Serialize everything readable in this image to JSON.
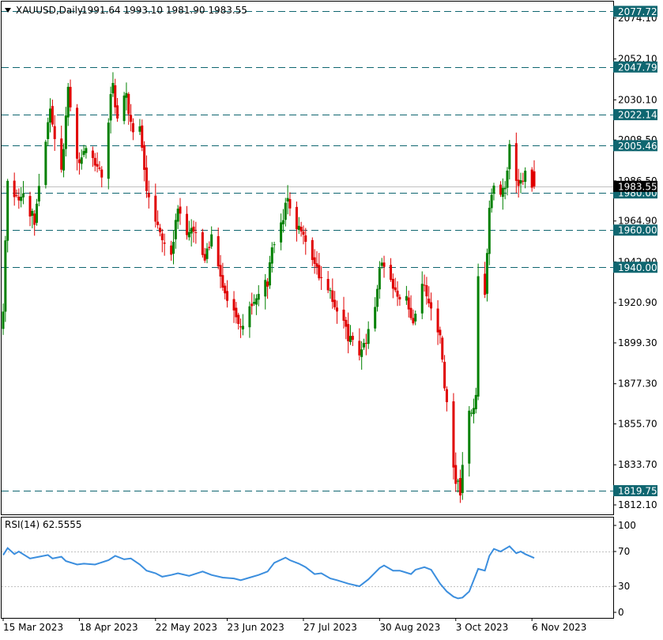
{
  "chart_data": [
    {
      "type": "candlestick",
      "symbol": "XAUUSD",
      "timeframe": "Daily",
      "header": {
        "symbol_label": "XAUUSD,Daily",
        "ohlc_label": "1991.64 1993.10 1981.90 1983.55"
      },
      "last_price": 1983.55,
      "last_price_label": "1983.55",
      "y_ticks": [
        "2074.10",
        "2052.10",
        "2030.10",
        "2008.50",
        "1986.50",
        "1964.90",
        "1942.90",
        "1920.90",
        "1899.30",
        "1877.30",
        "1855.70",
        "1833.70",
        "1812.10"
      ],
      "ylim": [
        1807,
        2083
      ],
      "levels": [
        {
          "value": 2077.72,
          "label": "2077.72"
        },
        {
          "value": 2047.79,
          "label": "2047.79"
        },
        {
          "value": 2022.14,
          "label": "2022.14"
        },
        {
          "value": 2005.46,
          "label": "2005.46"
        },
        {
          "value": 1980.0,
          "label": "1980.00"
        },
        {
          "value": 1960.0,
          "label": "1960.00"
        },
        {
          "value": 1940.0,
          "label": "1940.00"
        },
        {
          "value": 1819.75,
          "label": "1819.75"
        }
      ],
      "x_labels": [
        "15 Mar 2023",
        "18 Apr 2023",
        "22 May 2023",
        "23 Jun 2023",
        "27 Jul 2023",
        "30 Aug 2023",
        "3 Oct 2023",
        "6 Nov 2023"
      ],
      "close_path": [
        [
          "2023-03-15",
          1918
        ],
        [
          "2023-03-17",
          1988
        ],
        [
          "2023-03-20",
          1980
        ],
        [
          "2023-03-24",
          1978
        ],
        [
          "2023-03-29",
          1965
        ],
        [
          "2023-04-04",
          2020
        ],
        [
          "2023-04-05",
          2022
        ],
        [
          "2023-04-10",
          1990
        ],
        [
          "2023-04-13",
          2040
        ],
        [
          "2023-04-17",
          1995
        ],
        [
          "2023-04-20",
          2005
        ],
        [
          "2023-04-25",
          1998
        ],
        [
          "2023-04-28",
          1990
        ],
        [
          "2023-05-03",
          2040
        ],
        [
          "2023-05-05",
          2018
        ],
        [
          "2023-05-09",
          2035
        ],
        [
          "2023-05-11",
          2015
        ],
        [
          "2023-05-15",
          2015
        ],
        [
          "2023-05-18",
          1980
        ],
        [
          "2023-05-22",
          1962
        ],
        [
          "2023-05-25",
          1955
        ],
        [
          "2023-05-29",
          1945
        ],
        [
          "2023-06-01",
          1975
        ],
        [
          "2023-06-05",
          1960
        ],
        [
          "2023-06-09",
          1962
        ],
        [
          "2023-06-13",
          1945
        ],
        [
          "2023-06-16",
          1958
        ],
        [
          "2023-06-21",
          1932
        ],
        [
          "2023-06-23",
          1920
        ],
        [
          "2023-06-29",
          1908
        ],
        [
          "2023-07-03",
          1920
        ],
        [
          "2023-07-07",
          1925
        ],
        [
          "2023-07-11",
          1932
        ],
        [
          "2023-07-14",
          1955
        ],
        [
          "2023-07-20",
          1975
        ],
        [
          "2023-07-24",
          1960
        ],
        [
          "2023-07-28",
          1957
        ],
        [
          "2023-08-01",
          1940
        ],
        [
          "2023-08-04",
          1935
        ],
        [
          "2023-08-08",
          1925
        ],
        [
          "2023-08-11",
          1915
        ],
        [
          "2023-08-16",
          1903
        ],
        [
          "2023-08-21",
          1893
        ],
        [
          "2023-08-23",
          1898
        ],
        [
          "2023-08-28",
          1920
        ],
        [
          "2023-08-30",
          1942
        ],
        [
          "2023-09-01",
          1940
        ],
        [
          "2023-09-06",
          1925
        ],
        [
          "2023-09-11",
          1922
        ],
        [
          "2023-09-14",
          1910
        ],
        [
          "2023-09-19",
          1932
        ],
        [
          "2023-09-21",
          1921
        ],
        [
          "2023-09-26",
          1900
        ],
        [
          "2023-09-29",
          1866
        ],
        [
          "2023-10-03",
          1824
        ],
        [
          "2023-10-05",
          1820
        ],
        [
          "2023-10-06",
          1832
        ],
        [
          "2023-10-09",
          1860
        ],
        [
          "2023-10-12",
          1870
        ],
        [
          "2023-10-13",
          1932
        ],
        [
          "2023-10-16",
          1922
        ],
        [
          "2023-10-18",
          1975
        ],
        [
          "2023-10-20",
          1985
        ],
        [
          "2023-10-25",
          1980
        ],
        [
          "2023-10-27",
          2005
        ],
        [
          "2023-10-31",
          1985
        ],
        [
          "2023-11-03",
          1992
        ],
        [
          "2023-11-07",
          1983.55
        ]
      ],
      "rsi": {
        "label": "RSI(14) 62.5555",
        "period": 14,
        "last": 62.5555,
        "levels": [
          70,
          30
        ],
        "y_ticks": [
          "100",
          "70",
          "30",
          "0"
        ],
        "ylim": [
          0,
          100
        ],
        "values": [
          [
            "2023-03-15",
            66
          ],
          [
            "2023-03-17",
            74
          ],
          [
            "2023-03-20",
            67
          ],
          [
            "2023-03-22",
            70
          ],
          [
            "2023-03-27",
            62
          ],
          [
            "2023-03-31",
            64
          ],
          [
            "2023-04-04",
            66
          ],
          [
            "2023-04-06",
            62
          ],
          [
            "2023-04-10",
            64
          ],
          [
            "2023-04-12",
            59
          ],
          [
            "2023-04-17",
            55
          ],
          [
            "2023-04-20",
            56
          ],
          [
            "2023-04-25",
            55
          ],
          [
            "2023-05-01",
            60
          ],
          [
            "2023-05-04",
            65
          ],
          [
            "2023-05-08",
            61
          ],
          [
            "2023-05-11",
            62
          ],
          [
            "2023-05-15",
            55
          ],
          [
            "2023-05-18",
            48
          ],
          [
            "2023-05-22",
            45
          ],
          [
            "2023-05-25",
            41
          ],
          [
            "2023-05-29",
            43
          ],
          [
            "2023-06-01",
            45
          ],
          [
            "2023-06-06",
            42
          ],
          [
            "2023-06-12",
            47
          ],
          [
            "2023-06-16",
            43
          ],
          [
            "2023-06-21",
            40
          ],
          [
            "2023-06-26",
            39
          ],
          [
            "2023-06-29",
            37
          ],
          [
            "2023-07-03",
            40
          ],
          [
            "2023-07-07",
            43
          ],
          [
            "2023-07-11",
            47
          ],
          [
            "2023-07-14",
            57
          ],
          [
            "2023-07-19",
            63
          ],
          [
            "2023-07-21",
            60
          ],
          [
            "2023-07-25",
            56
          ],
          [
            "2023-07-28",
            52
          ],
          [
            "2023-08-01",
            44
          ],
          [
            "2023-08-04",
            45
          ],
          [
            "2023-08-08",
            39
          ],
          [
            "2023-08-11",
            37
          ],
          [
            "2023-08-16",
            33
          ],
          [
            "2023-08-21",
            30
          ],
          [
            "2023-08-25",
            38
          ],
          [
            "2023-08-30",
            51
          ],
          [
            "2023-09-01",
            54
          ],
          [
            "2023-09-05",
            48
          ],
          [
            "2023-09-08",
            48
          ],
          [
            "2023-09-13",
            44
          ],
          [
            "2023-09-15",
            49
          ],
          [
            "2023-09-19",
            52
          ],
          [
            "2023-09-22",
            49
          ],
          [
            "2023-09-26",
            33
          ],
          [
            "2023-09-29",
            24
          ],
          [
            "2023-10-02",
            18
          ],
          [
            "2023-10-04",
            16
          ],
          [
            "2023-10-06",
            17
          ],
          [
            "2023-10-09",
            24
          ],
          [
            "2023-10-13",
            50
          ],
          [
            "2023-10-16",
            48
          ],
          [
            "2023-10-18",
            65
          ],
          [
            "2023-10-20",
            73
          ],
          [
            "2023-10-23",
            70
          ],
          [
            "2023-10-27",
            76
          ],
          [
            "2023-10-30",
            68
          ],
          [
            "2023-11-01",
            70
          ],
          [
            "2023-11-03",
            67
          ],
          [
            "2023-11-07",
            62.56
          ]
        ]
      }
    }
  ],
  "colors": {
    "bull": "#008000",
    "bear": "#e00000",
    "level_line": "#0f6670",
    "level_label_bg": "#0f6670",
    "level_label_text": "#ffffff",
    "price_label_bg": "#000000",
    "price_label_text": "#ffffff",
    "rsi_line": "#3b8ede",
    "rsi_level": "#c0c0c0",
    "frame": "#000000",
    "current_price_line": "#c0c0c0"
  }
}
